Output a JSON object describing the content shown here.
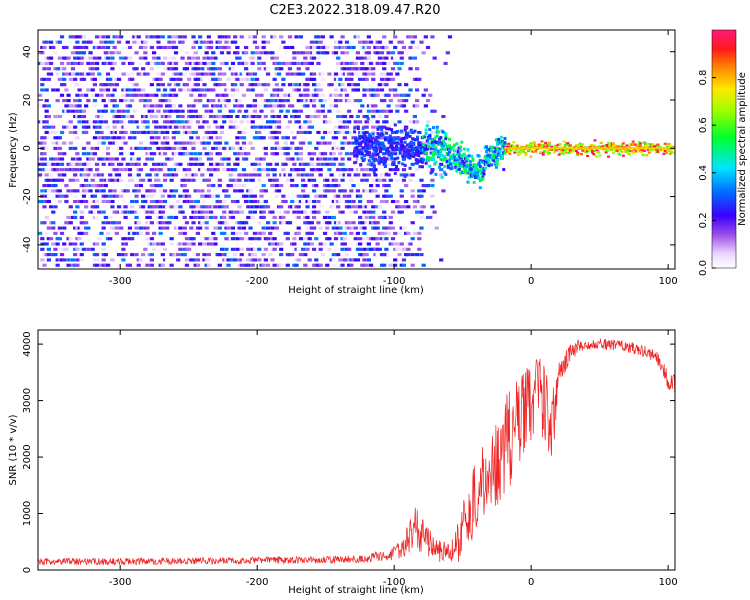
{
  "figure_title": "C2E3.2022.318.09.47.R20",
  "chart_data": [
    {
      "type": "heatmap",
      "title": "C2E3.2022.318.09.47.R20",
      "xlabel": "Height of straight line (km)",
      "ylabel": "Frequency (Hz)",
      "xlim": [
        -360,
        105
      ],
      "ylim": [
        -50,
        49
      ],
      "xticks": [
        -300,
        -200,
        -100,
        0,
        100
      ],
      "yticks": [
        -40,
        -20,
        0,
        20,
        40
      ],
      "xtick_labels": [
        "-300",
        "-200",
        "-100",
        "0",
        "100"
      ],
      "ytick_labels": [
        "-40",
        "-20",
        "0",
        "20",
        "40"
      ],
      "colorbar": {
        "label": "Normalized spectral amplitude",
        "range": [
          0,
          1
        ],
        "ticks": [
          0.0,
          0.2,
          0.4,
          0.6,
          0.8
        ],
        "tick_labels": [
          "0.0",
          "0.2",
          "0.4",
          "0.6",
          "0.8"
        ]
      },
      "features": {
        "noise_region_x": [
          -360,
          -110
        ],
        "noise_amplitude": 0.35,
        "signal_line_frequency": 0,
        "signal_dip": {
          "x_start": -70,
          "x_end": -35,
          "min_frequency": -10
        },
        "strong_band_x": [
          -20,
          105
        ],
        "strong_band_amplitude": 1.0
      }
    },
    {
      "type": "line",
      "title": "",
      "xlabel": "Height of straight line (km)",
      "ylabel": "SNR (10 * v/v)",
      "xlim": [
        -360,
        105
      ],
      "ylim": [
        0,
        4250
      ],
      "xticks": [
        -300,
        -200,
        -100,
        0,
        100
      ],
      "yticks": [
        0,
        1000,
        2000,
        3000,
        4000
      ],
      "xtick_labels": [
        "-300",
        "-200",
        "-100",
        "0",
        "100"
      ],
      "ytick_labels": [
        "0",
        "1000",
        "2000",
        "3000",
        "4000"
      ],
      "series": [
        {
          "name": "SNR",
          "color": "#ee2222",
          "x": [
            -360,
            -300,
            -250,
            -200,
            -150,
            -120,
            -100,
            -90,
            -85,
            -80,
            -75,
            -70,
            -60,
            -55,
            -50,
            -45,
            -40,
            -35,
            -30,
            -25,
            -20,
            -15,
            -10,
            -5,
            0,
            5,
            10,
            15,
            20,
            25,
            30,
            40,
            50,
            60,
            70,
            80,
            90,
            95,
            100,
            105
          ],
          "y": [
            150,
            150,
            160,
            170,
            180,
            200,
            300,
            500,
            750,
            600,
            500,
            350,
            300,
            400,
            700,
            1000,
            1300,
            1500,
            1700,
            1900,
            2200,
            2400,
            2600,
            2800,
            2950,
            3100,
            2900,
            2400,
            3400,
            3700,
            3900,
            4000,
            4020,
            3980,
            3950,
            3900,
            3800,
            3650,
            3350,
            3300
          ],
          "noise_spread": [
            60,
            60,
            60,
            60,
            60,
            70,
            120,
            300,
            400,
            400,
            300,
            200,
            200,
            300,
            500,
            600,
            700,
            700,
            700,
            800,
            900,
            900,
            900,
            800,
            700,
            700,
            700,
            700,
            300,
            200,
            150,
            100,
            100,
            100,
            100,
            100,
            120,
            150,
            150,
            150
          ]
        }
      ]
    }
  ]
}
